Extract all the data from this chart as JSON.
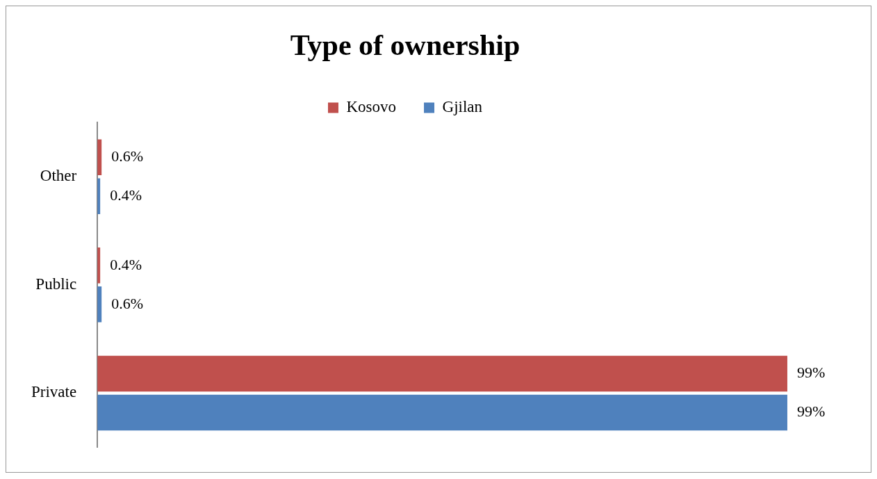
{
  "chart_data": {
    "type": "bar",
    "orientation": "horizontal",
    "title": "Type of ownership",
    "categories": [
      "Other",
      "Public",
      "Private"
    ],
    "series": [
      {
        "name": "Kosovo",
        "color": "#c0504d",
        "values": [
          0.6,
          0.4,
          99
        ],
        "value_labels": [
          "0.6%",
          "0.4%",
          "99%"
        ]
      },
      {
        "name": "Gjilan",
        "color": "#4f81bd",
        "values": [
          0.4,
          0.6,
          99
        ],
        "value_labels": [
          "0.4%",
          "0.6%",
          "99%"
        ]
      }
    ],
    "legend": "top"
  }
}
